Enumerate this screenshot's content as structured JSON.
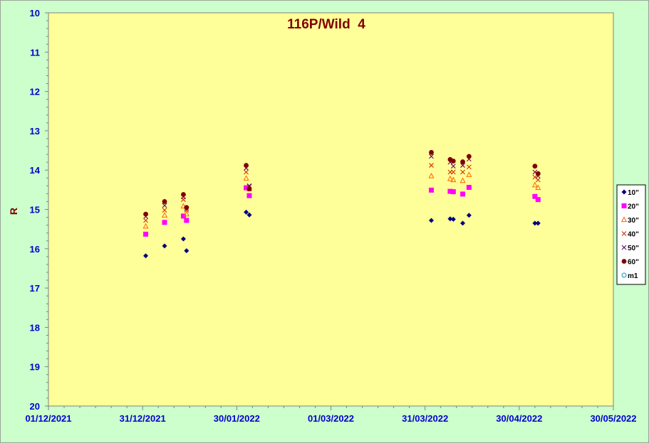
{
  "chart_data": {
    "type": "scatter",
    "title": "116P/Wild  4",
    "ylabel": "R",
    "xlabel": "",
    "x_tick_labels": [
      "01/12/2021",
      "31/12/2021",
      "30/01/2022",
      "01/03/2022",
      "31/03/2022",
      "30/04/2022",
      "30/05/2022"
    ],
    "x_range": [
      "01/12/2021",
      "30/05/2022"
    ],
    "y_tick_labels": [
      "10",
      "11",
      "12",
      "13",
      "14",
      "15",
      "16",
      "17",
      "18",
      "19",
      "20"
    ],
    "y_range": [
      10,
      20
    ],
    "y_inverted": true,
    "grid": false,
    "legend_position": "right",
    "colors": {
      "plot_background": "#ffff99",
      "outer_background": "#ccffcc",
      "tick_text": "#0000cc",
      "title_text": "#800000"
    },
    "series": [
      {
        "name": "10\"",
        "marker": "diamond",
        "color": "#000080",
        "points": [
          [
            "01/01/2022",
            16.18
          ],
          [
            "07/01/2022",
            15.93
          ],
          [
            "13/01/2022",
            15.75
          ],
          [
            "14/01/2022",
            16.05
          ],
          [
            "02/02/2022",
            15.07
          ],
          [
            "03/02/2022",
            15.14
          ],
          [
            "02/04/2022",
            15.28
          ],
          [
            "08/04/2022",
            15.24
          ],
          [
            "09/04/2022",
            15.25
          ],
          [
            "12/04/2022",
            15.35
          ],
          [
            "14/04/2022",
            15.15
          ],
          [
            "05/05/2022",
            15.35
          ],
          [
            "06/05/2022",
            15.35
          ]
        ]
      },
      {
        "name": "20\"",
        "marker": "square",
        "color": "#ff00ff",
        "points": [
          [
            "01/01/2022",
            15.63
          ],
          [
            "07/01/2022",
            15.33
          ],
          [
            "13/01/2022",
            15.17
          ],
          [
            "14/01/2022",
            15.28
          ],
          [
            "02/02/2022",
            14.45
          ],
          [
            "03/02/2022",
            14.65
          ],
          [
            "02/04/2022",
            14.51
          ],
          [
            "08/04/2022",
            14.54
          ],
          [
            "09/04/2022",
            14.55
          ],
          [
            "12/04/2022",
            14.61
          ],
          [
            "14/04/2022",
            14.44
          ],
          [
            "05/05/2022",
            14.67
          ],
          [
            "06/05/2022",
            14.75
          ]
        ]
      },
      {
        "name": "30\"",
        "marker": "triangle-open",
        "color": "#ff6600",
        "points": [
          [
            "01/01/2022",
            15.43
          ],
          [
            "07/01/2022",
            15.15
          ],
          [
            "13/01/2022",
            14.92
          ],
          [
            "14/01/2022",
            15.12
          ],
          [
            "02/02/2022",
            14.21
          ],
          [
            "03/02/2022",
            14.48
          ],
          [
            "02/04/2022",
            14.15
          ],
          [
            "08/04/2022",
            14.22
          ],
          [
            "09/04/2022",
            14.25
          ],
          [
            "12/04/2022",
            14.27
          ],
          [
            "14/04/2022",
            14.12
          ],
          [
            "05/05/2022",
            14.38
          ],
          [
            "06/05/2022",
            14.45
          ]
        ]
      },
      {
        "name": "40\"",
        "marker": "x",
        "color": "#cc3300",
        "points": [
          [
            "01/01/2022",
            15.28
          ],
          [
            "07/01/2022",
            15.02
          ],
          [
            "13/01/2022",
            14.75
          ],
          [
            "14/01/2022",
            15.02
          ],
          [
            "02/02/2022",
            14.05
          ],
          [
            "03/02/2022",
            14.42
          ],
          [
            "02/04/2022",
            13.88
          ],
          [
            "08/04/2022",
            14.05
          ],
          [
            "09/04/2022",
            14.05
          ],
          [
            "12/04/2022",
            14.05
          ],
          [
            "14/04/2022",
            13.92
          ],
          [
            "05/05/2022",
            14.18
          ],
          [
            "06/05/2022",
            14.25
          ]
        ]
      },
      {
        "name": "50\"",
        "marker": "x",
        "color": "#660066",
        "points": [
          [
            "01/01/2022",
            15.18
          ],
          [
            "07/01/2022",
            14.9
          ],
          [
            "13/01/2022",
            14.68
          ],
          [
            "14/01/2022",
            14.98
          ],
          [
            "02/02/2022",
            13.95
          ],
          [
            "03/02/2022",
            14.4
          ],
          [
            "02/04/2022",
            13.65
          ],
          [
            "08/04/2022",
            13.8
          ],
          [
            "09/04/2022",
            13.9
          ],
          [
            "12/04/2022",
            13.88
          ],
          [
            "14/04/2022",
            13.72
          ],
          [
            "05/05/2022",
            14.05
          ],
          [
            "06/05/2022",
            14.15
          ]
        ]
      },
      {
        "name": "60\"",
        "marker": "circle",
        "color": "#800000",
        "points": [
          [
            "01/01/2022",
            15.12
          ],
          [
            "07/01/2022",
            14.8
          ],
          [
            "13/01/2022",
            14.62
          ],
          [
            "14/01/2022",
            14.95
          ],
          [
            "02/02/2022",
            13.88
          ],
          [
            "03/02/2022",
            14.48
          ],
          [
            "02/04/2022",
            13.55
          ],
          [
            "08/04/2022",
            13.73
          ],
          [
            "09/04/2022",
            13.77
          ],
          [
            "12/04/2022",
            13.79
          ],
          [
            "14/04/2022",
            13.65
          ],
          [
            "05/05/2022",
            13.9
          ],
          [
            "06/05/2022",
            14.09
          ]
        ]
      },
      {
        "name": "m1",
        "marker": "circle-open",
        "color": "#0099cc",
        "points": []
      }
    ]
  }
}
